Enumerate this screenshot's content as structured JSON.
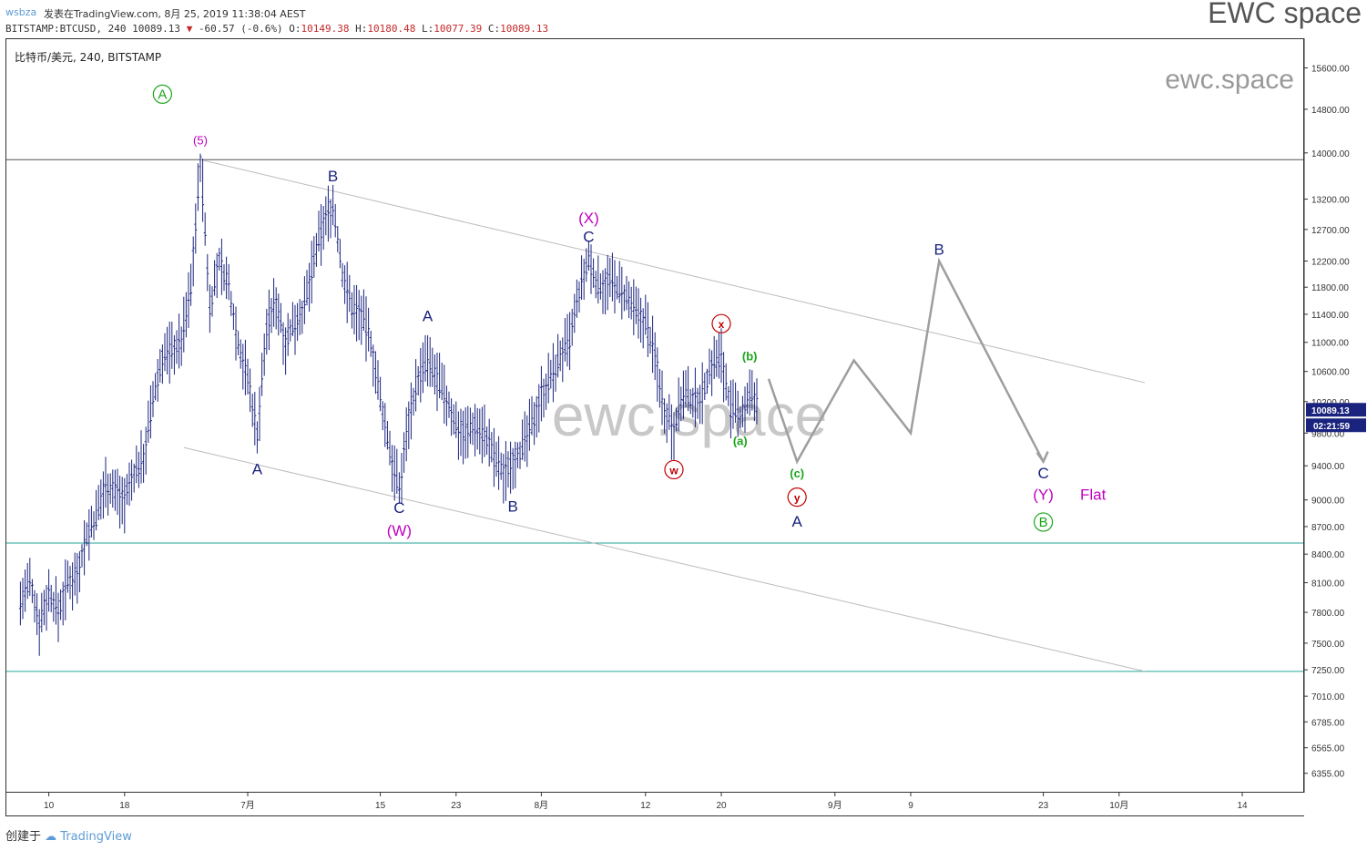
{
  "header": {
    "user": "wsbza",
    "published": "发表在TradingView.com, 8月 25, 2019 11:38:04 AEST",
    "symbol_line": "BITSTAMP:BTCUSD, 240 10089.13",
    "change": "-60.57 (-0.6%)",
    "o_label": "O:",
    "o_value": "10149.38",
    "h_label": "H:",
    "h_value": "10180.48",
    "l_label": "L:",
    "l_value": "10077.39",
    "c_label": "C:",
    "c_value": "10089.13",
    "brand": "EWC space"
  },
  "legend": "比特币/美元, 240, BITSTAMP",
  "watermark_small": "ewc.space",
  "watermark_big": "ewc.space",
  "footer": {
    "created_by": "创建于",
    "tradingview": "TradingView"
  },
  "chart_data": {
    "type": "candlestick",
    "symbol": "BITSTAMP:BTCUSD",
    "interval": "240",
    "scale": "log",
    "ylim": [
      6200,
      16200
    ],
    "y_ticks": [
      "15600.00",
      "14800.00",
      "14000.00",
      "13200.00",
      "12700.00",
      "12200.00",
      "11800.00",
      "11400.00",
      "11000.00",
      "10600.00",
      "10200.00",
      "9800.00",
      "9400.00",
      "9000.00",
      "8700.00",
      "8400.00",
      "8100.00",
      "7800.00",
      "7500.00",
      "7250.00",
      "7010.00",
      "6785.00",
      "6565.00",
      "6355.00"
    ],
    "x_ticks": [
      "10",
      "18",
      "7月",
      "15",
      "23",
      "8月",
      "12",
      "20",
      "9月",
      "9",
      "23",
      "10月",
      "14"
    ],
    "last_price": "10089.13",
    "countdown": "02:21:59",
    "colors": {
      "bars": "#1a237e",
      "price_tag": "#1a237e",
      "wave_blue": "#1a237e",
      "wave_purple": "#c000c0",
      "wave_green": "#1aa51a",
      "wave_red": "#c00000",
      "projection": "#9e9e9e",
      "hline": "#26a69a"
    },
    "price_path": [
      [
        "06-07",
        7900
      ],
      [
        "06-08",
        8100
      ],
      [
        "06-09",
        7700
      ],
      [
        "06-10",
        8000
      ],
      [
        "06-11",
        7800
      ],
      [
        "06-12",
        8100
      ],
      [
        "06-13",
        8200
      ],
      [
        "06-14",
        8600
      ],
      [
        "06-15",
        8800
      ],
      [
        "06-16",
        9200
      ],
      [
        "06-17",
        9100
      ],
      [
        "06-18",
        9000
      ],
      [
        "06-19",
        9300
      ],
      [
        "06-20",
        9500
      ],
      [
        "06-21",
        10200
      ],
      [
        "06-22",
        10800
      ],
      [
        "06-23",
        10900
      ],
      [
        "06-24",
        11000
      ],
      [
        "06-25",
        11800
      ],
      [
        "06-26",
        13800
      ],
      [
        "06-27",
        11500
      ],
      [
        "06-28",
        12200
      ],
      [
        "06-29",
        11800
      ],
      [
        "06-30",
        11000
      ],
      [
        "07-01",
        10500
      ],
      [
        "07-02",
        9800
      ],
      [
        "07-03",
        11200
      ],
      [
        "07-04",
        11600
      ],
      [
        "07-05",
        11000
      ],
      [
        "07-06",
        11300
      ],
      [
        "07-07",
        11500
      ],
      [
        "07-08",
        12200
      ],
      [
        "07-09",
        12800
      ],
      [
        "07-10",
        13100
      ],
      [
        "07-11",
        12000
      ],
      [
        "07-12",
        11500
      ],
      [
        "07-13",
        11400
      ],
      [
        "07-14",
        11000
      ],
      [
        "07-15",
        10200
      ],
      [
        "07-16",
        9600
      ],
      [
        "07-17",
        9100
      ],
      [
        "07-18",
        10000
      ],
      [
        "07-19",
        10500
      ],
      [
        "07-20",
        10700
      ],
      [
        "07-21",
        10500
      ],
      [
        "07-22",
        10200
      ],
      [
        "07-23",
        9900
      ],
      [
        "07-24",
        9800
      ],
      [
        "07-25",
        9900
      ],
      [
        "07-26",
        9800
      ],
      [
        "07-27",
        9500
      ],
      [
        "07-28",
        9300
      ],
      [
        "07-29",
        9500
      ],
      [
        "07-30",
        9600
      ],
      [
        "07-31",
        9900
      ],
      [
        "08-01",
        10300
      ],
      [
        "08-02",
        10500
      ],
      [
        "08-03",
        10800
      ],
      [
        "08-04",
        11000
      ],
      [
        "08-05",
        11700
      ],
      [
        "08-06",
        12200
      ],
      [
        "08-07",
        11800
      ],
      [
        "08-08",
        11900
      ],
      [
        "08-09",
        11800
      ],
      [
        "08-10",
        11600
      ],
      [
        "08-11",
        11400
      ],
      [
        "08-12",
        11300
      ],
      [
        "08-13",
        10800
      ],
      [
        "08-14",
        10100
      ],
      [
        "08-15",
        9900
      ],
      [
        "08-16",
        10300
      ],
      [
        "08-17",
        10200
      ],
      [
        "08-18",
        10300
      ],
      [
        "08-19",
        10700
      ],
      [
        "08-20",
        10800
      ],
      [
        "08-21",
        10100
      ],
      [
        "08-22",
        10000
      ],
      [
        "08-23",
        10300
      ],
      [
        "08-24",
        10089
      ]
    ],
    "extrema": [
      {
        "date": "06-26",
        "price": 13900,
        "type": "high"
      },
      {
        "date": "07-02",
        "price": 9700,
        "type": "low"
      },
      {
        "date": "07-10",
        "price": 13200,
        "type": "high"
      },
      {
        "date": "07-17",
        "price": 9070,
        "type": "low"
      },
      {
        "date": "07-20",
        "price": 11100,
        "type": "high"
      },
      {
        "date": "07-29",
        "price": 9120,
        "type": "low"
      },
      {
        "date": "08-06",
        "price": 12320,
        "type": "high"
      },
      {
        "date": "08-15",
        "price": 9470,
        "type": "low"
      },
      {
        "date": "08-20",
        "price": 10950,
        "type": "high"
      }
    ],
    "projection_path": [
      [
        "08-25",
        10500
      ],
      [
        "08-28",
        9450
      ],
      [
        "09-03",
        10750
      ],
      [
        "09-09",
        9800
      ],
      [
        "09-12",
        12200
      ],
      [
        "09-23",
        9450
      ]
    ],
    "horizontal_lines": [
      13880,
      8520,
      7235
    ],
    "annotations": [
      {
        "text": "Ⓐ",
        "date": "06-22",
        "price": 15000,
        "color": "wave_green",
        "circled": true,
        "label": "A"
      },
      {
        "text": "(5)",
        "date": "06-26",
        "price": 14150,
        "color": "wave_purple"
      },
      {
        "text": "B",
        "date": "07-10",
        "price": 13500,
        "color": "wave_blue"
      },
      {
        "text": "A",
        "date": "07-02",
        "price": 9300,
        "color": "wave_blue"
      },
      {
        "text": "C",
        "date": "07-17",
        "price": 8850,
        "color": "wave_blue"
      },
      {
        "text": "(W)",
        "date": "07-17",
        "price": 8600,
        "color": "wave_purple"
      },
      {
        "text": "A",
        "date": "07-20",
        "price": 11300,
        "color": "wave_blue"
      },
      {
        "text": "B",
        "date": "07-29",
        "price": 8870,
        "color": "wave_blue"
      },
      {
        "text": "(X)",
        "date": "08-06",
        "price": 12800,
        "color": "wave_purple"
      },
      {
        "text": "C",
        "date": "08-06",
        "price": 12500,
        "color": "wave_blue"
      },
      {
        "text": "x",
        "date": "08-20",
        "price": 11200,
        "color": "wave_red",
        "circled": true
      },
      {
        "text": "w",
        "date": "08-15",
        "price": 9300,
        "color": "wave_red",
        "circled": true
      },
      {
        "text": "(b)",
        "date": "08-23",
        "price": 10750,
        "color": "wave_green"
      },
      {
        "text": "(a)",
        "date": "08-22",
        "price": 9650,
        "color": "wave_green"
      },
      {
        "text": "(c)",
        "date": "08-28",
        "price": 9260,
        "color": "wave_green"
      },
      {
        "text": "y",
        "date": "08-28",
        "price": 8980,
        "color": "wave_red",
        "circled": true
      },
      {
        "text": "A",
        "date": "08-28",
        "price": 8700,
        "color": "wave_blue"
      },
      {
        "text": "B",
        "date": "09-12",
        "price": 12300,
        "color": "wave_blue"
      },
      {
        "text": "C",
        "date": "09-23",
        "price": 9250,
        "color": "wave_blue"
      },
      {
        "text": "(Y)",
        "date": "09-23",
        "price": 9000,
        "color": "wave_purple"
      },
      {
        "text": "Flat",
        "date": "09-24",
        "price": 9000,
        "color": "wave_purple"
      },
      {
        "text": "B",
        "date": "09-23",
        "price": 8700,
        "color": "wave_green",
        "circled": true
      }
    ]
  }
}
